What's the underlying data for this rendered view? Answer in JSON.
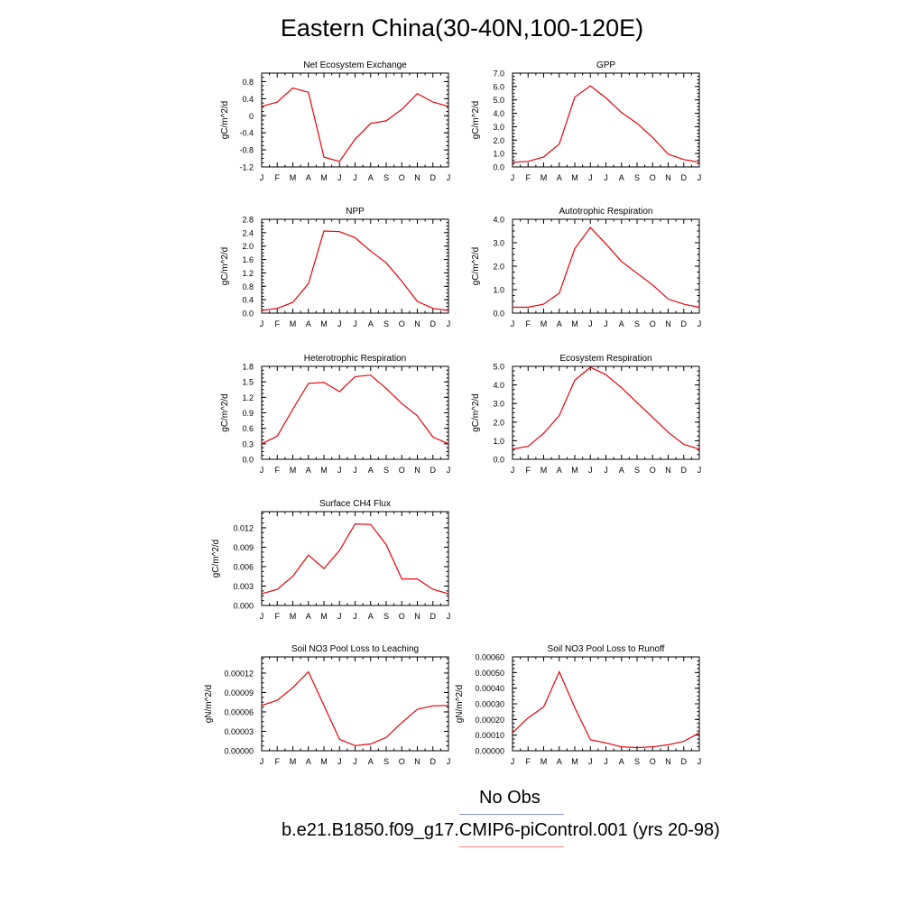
{
  "title": "Eastern China(30-40N,100-120E)",
  "months": [
    "J",
    "F",
    "M",
    "A",
    "M",
    "J",
    "J",
    "A",
    "S",
    "O",
    "N",
    "D",
    "J"
  ],
  "colors": {
    "model": "#e8000b",
    "obs": "#1f3fff"
  },
  "legend": {
    "obs_label": "No Obs",
    "model_label": "b.e21.B1850.f09_g17.CMIP6-piControl.001 (yrs 20-98)"
  },
  "chart_data": [
    {
      "type": "line",
      "title": "Net Ecosystem Exchange",
      "ylabel": "gC/m^2/d",
      "ylim": [
        -1.2,
        1.0
      ],
      "yticks": [
        -1.2,
        -0.8,
        -0.4,
        0,
        0.4,
        0.8
      ],
      "ytick_labels": [
        "-1.2",
        "-0.8",
        "-0.4",
        "0",
        "0.4",
        "0.8"
      ],
      "values": [
        0.22,
        0.32,
        0.65,
        0.55,
        -0.97,
        -1.07,
        -0.55,
        -0.18,
        -0.12,
        0.15,
        0.52,
        0.32,
        0.22
      ]
    },
    {
      "type": "line",
      "title": "GPP",
      "ylabel": "gC/m^2/d",
      "ylim": [
        0,
        7.0
      ],
      "yticks": [
        0,
        1,
        2,
        3,
        4,
        5,
        6,
        7
      ],
      "ytick_labels": [
        "0.0",
        "1.0",
        "2.0",
        "3.0",
        "4.0",
        "5.0",
        "6.0",
        "7.0"
      ],
      "values": [
        0.35,
        0.42,
        0.75,
        1.7,
        5.2,
        6.05,
        5.15,
        4.05,
        3.25,
        2.2,
        0.95,
        0.55,
        0.35
      ]
    },
    {
      "type": "line",
      "title": "NPP",
      "ylabel": "gC/m^2/d",
      "ylim": [
        0,
        2.8
      ],
      "yticks": [
        0,
        0.4,
        0.8,
        1.2,
        1.6,
        2.0,
        2.4,
        2.8
      ],
      "ytick_labels": [
        "0.0",
        "0.4",
        "0.8",
        "1.2",
        "1.6",
        "2.0",
        "2.4",
        "2.8"
      ],
      "values": [
        0.08,
        0.14,
        0.32,
        0.88,
        2.45,
        2.43,
        2.25,
        1.85,
        1.5,
        0.95,
        0.35,
        0.14,
        0.08
      ]
    },
    {
      "type": "line",
      "title": "Autotrophic Respiration",
      "ylabel": "gC/m^2/d",
      "ylim": [
        0,
        4.0
      ],
      "yticks": [
        0,
        1,
        2,
        3,
        4
      ],
      "ytick_labels": [
        "0.0",
        "1.0",
        "2.0",
        "3.0",
        "4.0"
      ],
      "values": [
        0.25,
        0.25,
        0.38,
        0.85,
        2.75,
        3.65,
        2.95,
        2.2,
        1.7,
        1.2,
        0.6,
        0.38,
        0.25
      ]
    },
    {
      "type": "line",
      "title": "Heterotrophic Respiration",
      "ylabel": "gC/m^2/d",
      "ylim": [
        0,
        1.8
      ],
      "yticks": [
        0,
        0.3,
        0.6,
        0.9,
        1.2,
        1.5,
        1.8
      ],
      "ytick_labels": [
        "0.0",
        "0.3",
        "0.6",
        "0.9",
        "1.2",
        "1.5",
        "1.8"
      ],
      "values": [
        0.3,
        0.45,
        0.97,
        1.47,
        1.49,
        1.31,
        1.6,
        1.63,
        1.37,
        1.08,
        0.84,
        0.43,
        0.3
      ]
    },
    {
      "type": "line",
      "title": "Ecosystem Respiration",
      "ylabel": "gC/m^2/d",
      "ylim": [
        0,
        5.0
      ],
      "yticks": [
        0,
        1,
        2,
        3,
        4,
        5
      ],
      "ytick_labels": [
        "0.0",
        "1.0",
        "2.0",
        "3.0",
        "4.0",
        "5.0"
      ],
      "values": [
        0.55,
        0.7,
        1.4,
        2.35,
        4.25,
        4.95,
        4.55,
        3.85,
        3.05,
        2.25,
        1.45,
        0.8,
        0.55
      ]
    },
    {
      "type": "line",
      "title": "Surface CH4 Flux",
      "ylabel": "gC/m^2/d",
      "ylim": [
        0,
        0.0145
      ],
      "yticks": [
        0,
        0.003,
        0.006,
        0.009,
        0.012
      ],
      "ytick_labels": [
        "0.000",
        "0.003",
        "0.006",
        "0.009",
        "0.012"
      ],
      "values": [
        0.0018,
        0.0025,
        0.0045,
        0.0078,
        0.0057,
        0.0085,
        0.0126,
        0.0125,
        0.0094,
        0.0041,
        0.0041,
        0.0025,
        0.0018
      ]
    },
    {
      "type": "line",
      "title": "Soil NO3 Pool Loss to Leaching",
      "ylabel": "gN/m^2/d",
      "ylim": [
        0,
        0.000145
      ],
      "yticks": [
        0,
        3e-05,
        6e-05,
        9e-05,
        0.00012
      ],
      "ytick_labels": [
        "0.00000",
        "0.00003",
        "0.00006",
        "0.00009",
        "0.00012"
      ],
      "values": [
        7e-05,
        7.8e-05,
        9.75e-05,
        0.000122,
        7e-05,
        1.75e-05,
        8e-06,
        1.05e-05,
        2.05e-05,
        4.35e-05,
        6.4e-05,
        6.95e-05,
        7e-05
      ]
    },
    {
      "type": "line",
      "title": "Soil NO3 Pool Loss to Runoff",
      "ylabel": "gN/m^2/d",
      "ylim": [
        0,
        0.0006
      ],
      "yticks": [
        0,
        0.0001,
        0.0002,
        0.0003,
        0.0004,
        0.0005,
        0.0006
      ],
      "ytick_labels": [
        "0.00000",
        "0.00010",
        "0.00020",
        "0.00030",
        "0.00040",
        "0.00050",
        "0.00060"
      ],
      "values": [
        0.000115,
        0.00021,
        0.00028,
        0.000505,
        0.000275,
        7e-05,
        5e-05,
        2.5e-05,
        2e-05,
        2.5e-05,
        3.8e-05,
        6e-05,
        0.000115
      ]
    }
  ]
}
